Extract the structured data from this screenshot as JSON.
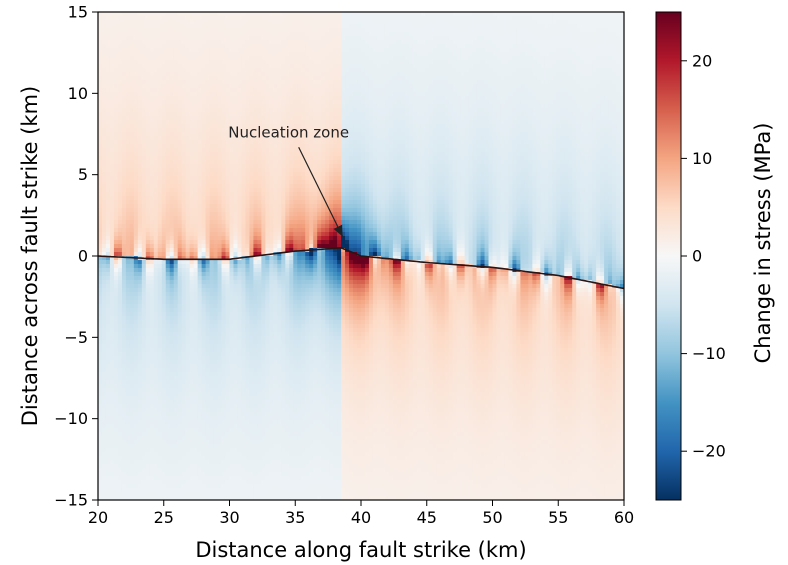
{
  "chart_data": {
    "type": "heatmap",
    "title": "",
    "xlabel": "Distance along fault strike (km)",
    "ylabel": "Distance across fault strike (km)",
    "xlim": [
      20,
      60
    ],
    "ylim": [
      -15,
      15
    ],
    "xticks": [
      "20",
      "25",
      "30",
      "35",
      "40",
      "45",
      "50",
      "55",
      "60"
    ],
    "yticks": [
      "−15",
      "−10",
      "−5",
      "0",
      "5",
      "10",
      "15"
    ],
    "colorbar": {
      "label": "Change in stress (MPa)",
      "range": [
        -25,
        25
      ],
      "ticks": [
        "−20",
        "−10",
        "0",
        "10",
        "20"
      ],
      "colormap": "RdBu_r",
      "colors": [
        "#053061",
        "#2166ac",
        "#4393c3",
        "#92c5de",
        "#d1e5f0",
        "#f7f7f7",
        "#fddbc7",
        "#f4a582",
        "#d6604d",
        "#b2182b",
        "#67001f"
      ]
    },
    "fault_trace": {
      "x": [
        20,
        25,
        30,
        35,
        38.5,
        40,
        45,
        50,
        55,
        60
      ],
      "y": [
        0,
        -0.2,
        -0.2,
        0.3,
        0.5,
        0,
        -0.4,
        -0.7,
        -1.2,
        -2.0
      ]
    },
    "annotation": {
      "text": "Nucleation zone",
      "text_x": 34.5,
      "text_y": 7.3,
      "target_x": 38.6,
      "target_y": 1.2
    }
  }
}
